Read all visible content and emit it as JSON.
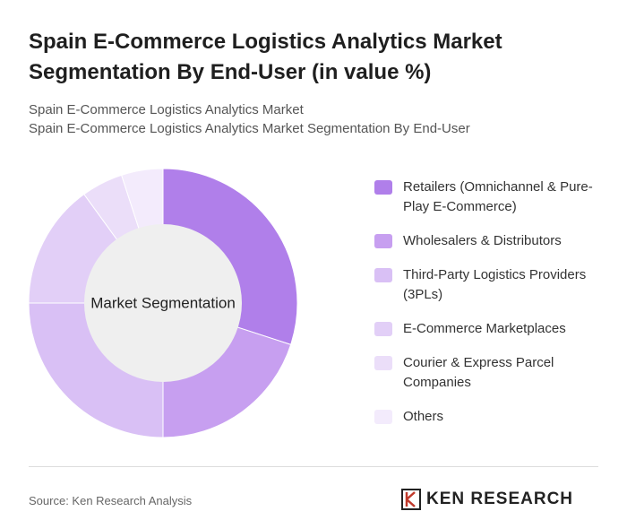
{
  "chart_data": {
    "type": "donut",
    "title": "Spain E-Commerce Logistics Analytics Market Segmentation By End-User (in value %)",
    "subtitle": [
      "Spain E-Commerce Logistics Analytics Market",
      "Spain E-Commerce Logistics Analytics Market Segmentation By End-User"
    ],
    "center_label": "Market Segmentation",
    "categories": [
      "Retailers (Omnichannel & Pure-Play E-Commerce)",
      "Wholesalers & Distributors",
      "Third-Party Logistics Providers (3PLs)",
      "E-Commerce Marketplaces",
      "Courier & Express Parcel Companies",
      "Others"
    ],
    "values": [
      30,
      20,
      25,
      15,
      5,
      5
    ],
    "colors": [
      "#b07fea",
      "#c79ff0",
      "#d9c0f5",
      "#e2cff7",
      "#ebdef9",
      "#f3ebfc"
    ],
    "source": "Source: Ken Research Analysis",
    "brand": "KEN RESEARCH"
  }
}
